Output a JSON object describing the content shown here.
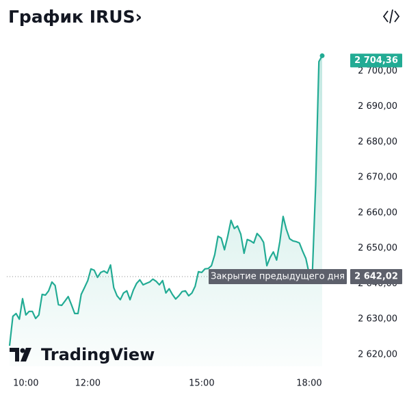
{
  "chart_data": {
    "type": "line",
    "title": "График IRUS›",
    "series": [
      {
        "color": "#22ab94",
        "values": [
          2622.5,
          2630.8,
          2631.6,
          2630.0,
          2635.8,
          2631.2,
          2632.2,
          2632.2,
          2630.2,
          2631.2,
          2637.0,
          2636.8,
          2638.0,
          2640.5,
          2639.5,
          2634.1,
          2633.9,
          2635.1,
          2636.4,
          2634.1,
          2631.6,
          2631.6,
          2637.0,
          2638.9,
          2640.9,
          2644.2,
          2643.8,
          2641.8,
          2643.2,
          2643.6,
          2643.0,
          2645.3,
          2638.9,
          2636.6,
          2635.5,
          2637.4,
          2638.0,
          2635.5,
          2638.2,
          2640.1,
          2641.1,
          2639.7,
          2640.1,
          2640.5,
          2641.3,
          2640.7,
          2639.7,
          2640.9,
          2637.4,
          2638.6,
          2637.0,
          2635.7,
          2636.6,
          2637.8,
          2638.0,
          2636.6,
          2637.4,
          2639.3,
          2643.4,
          2643.2,
          2644.2,
          2644.3,
          2645.1,
          2648.2,
          2653.4,
          2652.9,
          2649.6,
          2653.4,
          2657.9,
          2655.6,
          2656.3,
          2654.0,
          2648.6,
          2652.5,
          2652.1,
          2651.5,
          2654.2,
          2653.2,
          2651.7,
          2645.1,
          2647.4,
          2649.0,
          2646.7,
          2651.9,
          2659.0,
          2655.4,
          2652.7,
          2652.1,
          2651.9,
          2651.5,
          2649.2,
          2647.1,
          2642.8,
          2643.2,
          2667.9,
          2702.7,
          2704.36
        ]
      }
    ],
    "xlim": [
      0,
      96
    ],
    "xticks": [
      {
        "value": 5,
        "label": "10:00"
      },
      {
        "value": 24,
        "label": "12:00"
      },
      {
        "value": 59,
        "label": "15:00"
      },
      {
        "value": 92,
        "label": "18:00"
      }
    ],
    "ylim": [
      2616.7,
      2708.5
    ],
    "yticks": [
      {
        "value": 2620,
        "label": "2 620,00"
      },
      {
        "value": 2630,
        "label": "2 630,00"
      },
      {
        "value": 2640,
        "label": "2 640,00"
      },
      {
        "value": 2650,
        "label": "2 650,00"
      },
      {
        "value": 2660,
        "label": "2 660,00"
      },
      {
        "value": 2670,
        "label": "2 670,00"
      },
      {
        "value": 2680,
        "label": "2 680,00"
      },
      {
        "value": 2690,
        "label": "2 690,00"
      },
      {
        "value": 2700,
        "label": "2 700,00"
      }
    ],
    "last_price": {
      "value": 2704.36,
      "label": "2 704,36"
    },
    "prev_close": {
      "value": 2642.02,
      "label": "2 642,02",
      "text": "Закрытие предыдущего дня"
    },
    "watermark": "TradingView"
  }
}
